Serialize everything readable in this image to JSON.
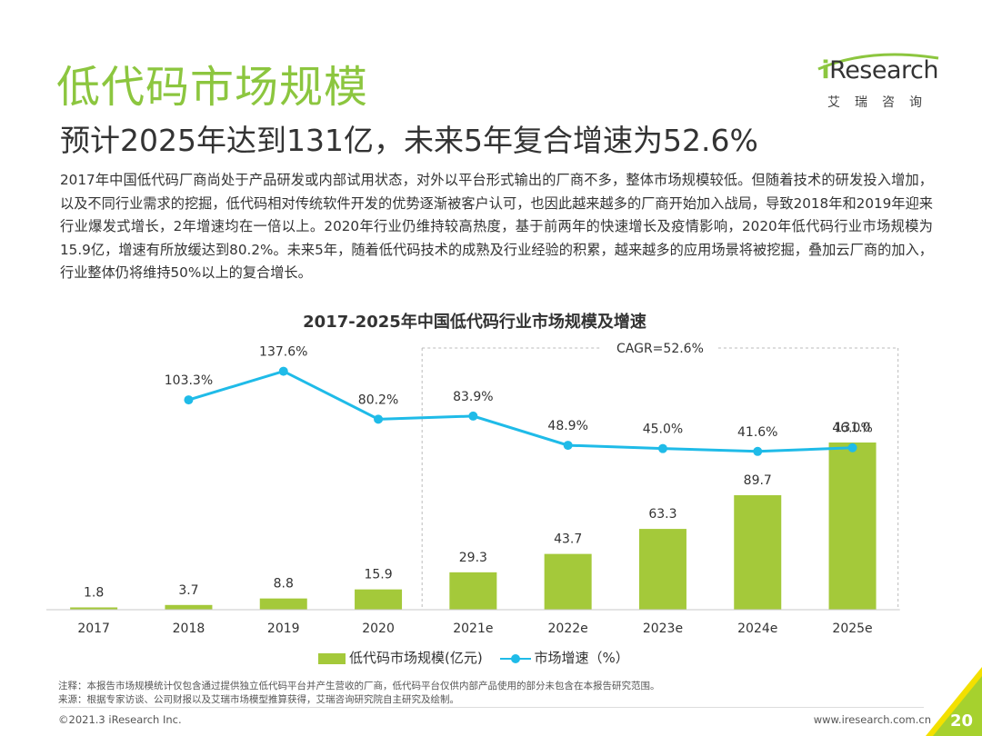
{
  "header": {
    "title": "低代码市场规模",
    "subtitle": "预计2025年达到131亿，未来5年复合增速为52.6%"
  },
  "logo": {
    "wordmark_i": "i",
    "wordmark_rest": "Research",
    "cn_name": "艾瑞咨询"
  },
  "description": "2017年中国低代码厂商尚处于产品研发或内部试用状态，对外以平台形式输出的厂商不多，整体市场规模较低。但随着技术的研发投入增加，以及不同行业需求的挖掘，低代码相对传统软件开发的优势逐渐被客户认可，也因此越来越多的厂商开始加入战局，导致2018年和2019年迎来行业爆发式增长，2年增速均在一倍以上。2020年行业仍维持较高热度，基于前两年的快速增长及疫情影响，2020年低代码行业市场规模为15.9亿，增速有所放缓达到80.2%。未来5年，随着低代码技术的成熟及行业经验的积累，越来越多的应用场景将被挖掘，叠加云厂商的加入，行业整体仍将维持50%以上的复合增长。",
  "chart_data": {
    "type": "bar",
    "title": "2017-2025年中国低代码行业市场规模及增速",
    "categories": [
      "2017",
      "2018",
      "2019",
      "2020",
      "2021e",
      "2022e",
      "2023e",
      "2024e",
      "2025e"
    ],
    "series": [
      {
        "name": "低代码市场规模(亿元)",
        "kind": "bar",
        "values": [
          1.8,
          3.7,
          8.8,
          15.9,
          29.3,
          43.7,
          63.3,
          89.7,
          131.0
        ],
        "labels": [
          "1.8",
          "3.7",
          "8.8",
          "15.9",
          "29.3",
          "43.7",
          "63.3",
          "89.7",
          "131.0"
        ]
      },
      {
        "name": "市场增速（%）",
        "kind": "line",
        "values": [
          null,
          103.3,
          137.6,
          80.2,
          83.9,
          48.9,
          45.0,
          41.6,
          46.0
        ],
        "labels": [
          "",
          "103.3%",
          "137.6%",
          "80.2%",
          "83.9%",
          "48.9%",
          "45.0%",
          "41.6%",
          "46.0%"
        ]
      }
    ],
    "annotation": {
      "text": "CAGR=52.6%",
      "from_category": "2021e",
      "to_category": "2025e"
    },
    "ylim_bar": [
      0,
      131
    ],
    "ylim_line": [
      0,
      160
    ],
    "grid": false,
    "legend_position": "bottom",
    "colors": {
      "bar": "#a4c93a",
      "line": "#1fbbe8",
      "axis": "#c8c8c8",
      "bracket": "#bbbbbb"
    }
  },
  "notes": {
    "note": "注释：本报告市场规模统计仅包含通过提供独立低代码平台并产生营收的厂商，低代码平台仅供内部产品使用的部分未包含在本报告研究范围。",
    "source": "来源：根据专家访谈、公司财报以及艾瑞市场模型推算获得，艾瑞咨询研究院自主研究及绘制。"
  },
  "footer": {
    "copyright": "©2021.3 iResearch Inc.",
    "website": "www.iresearch.com.cn",
    "page_number": "20"
  },
  "colors": {
    "brand_green": "#8cc63f",
    "corner_green": "#a6d12e",
    "corner_yellow": "#f3e000"
  }
}
